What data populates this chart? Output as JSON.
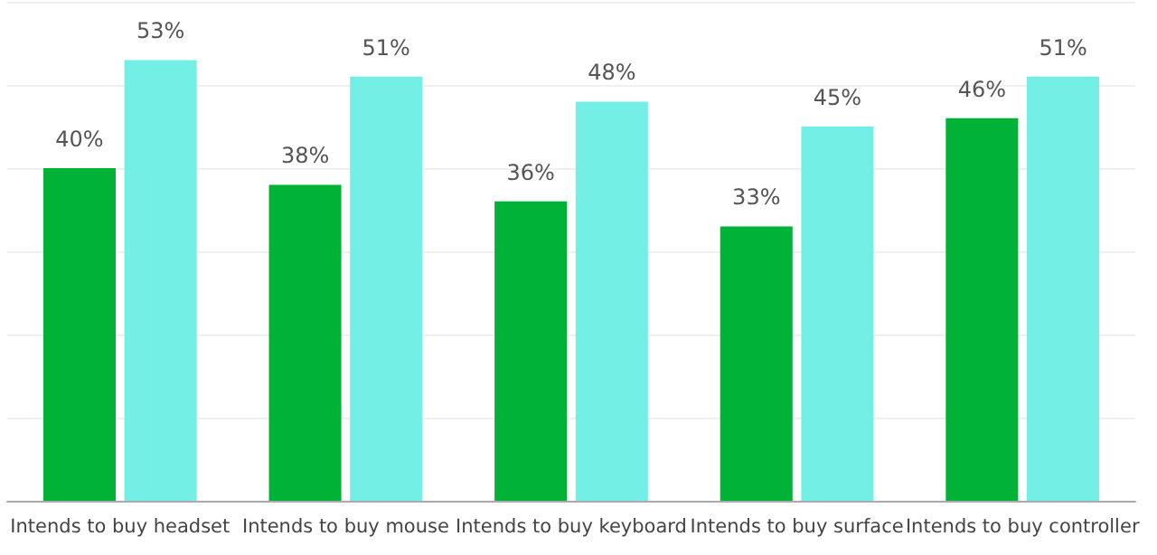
{
  "chart_data": {
    "type": "bar",
    "categories": [
      "Intends to buy headset",
      "Intends to buy mouse",
      "Intends to buy keyboard",
      "Intends to buy surface",
      "Intends to buy controller"
    ],
    "series": [
      {
        "color": "#00b336",
        "values": [
          40,
          38,
          36,
          33,
          46
        ],
        "value_labels": [
          "40%",
          "38%",
          "36%",
          "33%",
          "46%"
        ]
      },
      {
        "color": "#74efe6",
        "values": [
          53,
          51,
          48,
          45,
          51
        ],
        "value_labels": [
          "53%",
          "51%",
          "48%",
          "45%",
          "51%"
        ]
      }
    ],
    "ylim": [
      0,
      60
    ],
    "yticks": [
      0,
      10,
      20,
      30,
      40,
      50,
      60
    ],
    "tick_labels": "x",
    "grid": "y"
  }
}
